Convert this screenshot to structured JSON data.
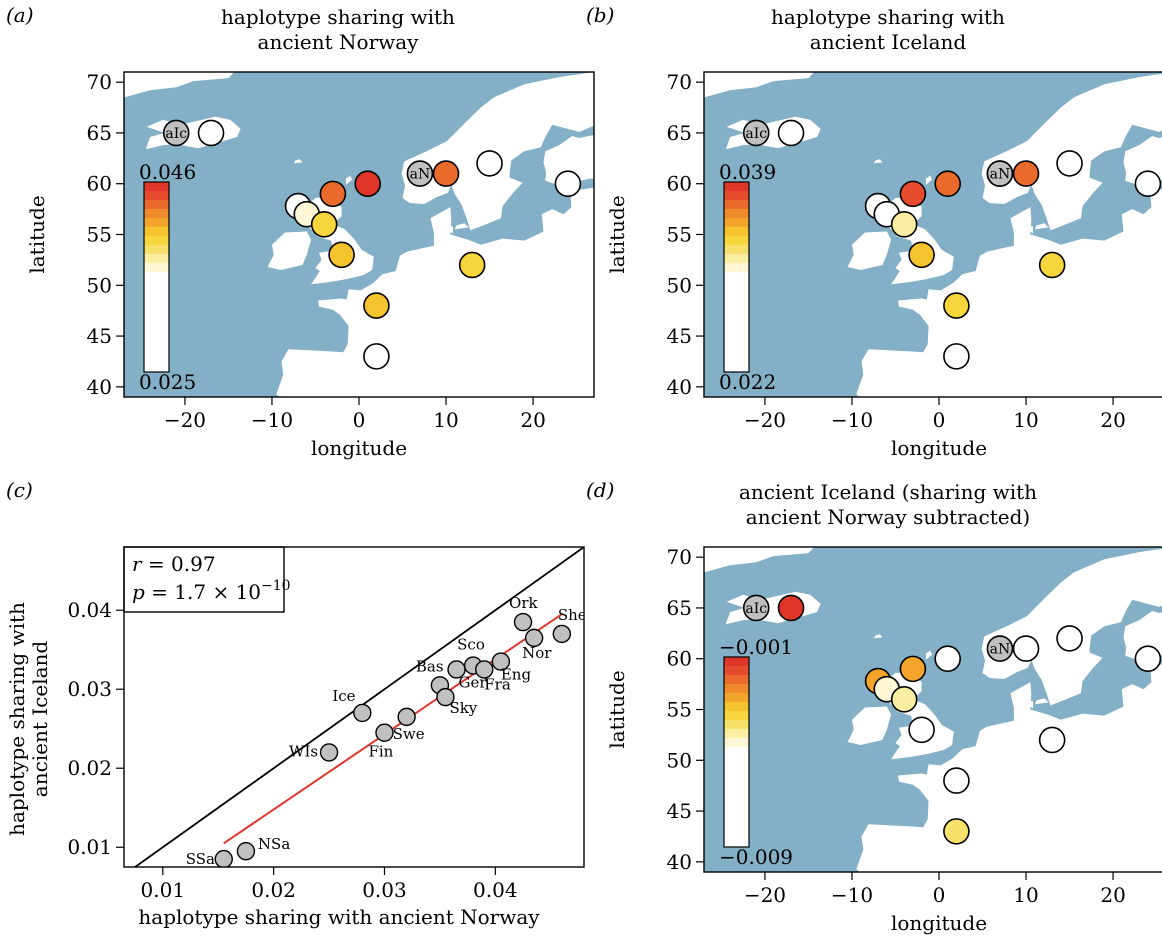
{
  "chart_data": [
    {
      "panel": "(a)",
      "type": "map-scatter",
      "title": [
        "haplotype sharing with",
        "ancient Norway"
      ],
      "xlabel": "longitude",
      "ylabel": "latitude",
      "xlim": [
        -27,
        27
      ],
      "ylim": [
        39,
        71
      ],
      "xticks": [
        -20,
        -10,
        0,
        10,
        20
      ],
      "yticks": [
        40,
        45,
        50,
        55,
        60,
        65,
        70
      ],
      "legend": {
        "max_label": "0.046",
        "min_label": "0.025",
        "min": 0.025,
        "max": 0.046
      },
      "reference_points": [
        {
          "label": "aIc",
          "lon": -21,
          "lat": 65
        },
        {
          "label": "aN",
          "lon": 7,
          "lat": 61
        }
      ],
      "points": [
        {
          "lon": -17,
          "lat": 65,
          "value": 0.025
        },
        {
          "lon": 10,
          "lat": 61,
          "value": 0.042
        },
        {
          "lon": 1,
          "lat": 60,
          "value": 0.045
        },
        {
          "lon": -3,
          "lat": 59,
          "value": 0.041
        },
        {
          "lon": -7,
          "lat": 57.8,
          "value": 0.025
        },
        {
          "lon": -6,
          "lat": 57,
          "value": 0.027
        },
        {
          "lon": -4,
          "lat": 56,
          "value": 0.033
        },
        {
          "lon": -2,
          "lat": 53,
          "value": 0.035
        },
        {
          "lon": 2,
          "lat": 48,
          "value": 0.035
        },
        {
          "lon": 13,
          "lat": 52,
          "value": 0.034
        },
        {
          "lon": 2,
          "lat": 43,
          "value": 0.025
        },
        {
          "lon": 15,
          "lat": 62,
          "value": 0.025
        },
        {
          "lon": 24,
          "lat": 60,
          "value": 0.025
        }
      ]
    },
    {
      "panel": "(b)",
      "type": "map-scatter",
      "title": [
        "haplotype sharing with",
        "ancient Iceland"
      ],
      "xlabel": "longitude",
      "ylabel": "latitude",
      "xlim": [
        -27,
        27
      ],
      "ylim": [
        39,
        71
      ],
      "xticks": [
        -20,
        -10,
        0,
        10,
        20
      ],
      "yticks": [
        40,
        45,
        50,
        55,
        60,
        65,
        70
      ],
      "legend": {
        "max_label": "0.039",
        "min_label": "0.022",
        "min": 0.022,
        "max": 0.039
      },
      "reference_points": [
        {
          "label": "aIc",
          "lon": -21,
          "lat": 65
        },
        {
          "label": "aN",
          "lon": 7,
          "lat": 61
        }
      ],
      "points": [
        {
          "lon": -17,
          "lat": 65,
          "value": 0.022
        },
        {
          "lon": 7,
          "lat": 61,
          "value": 0.037
        },
        {
          "lon": 10,
          "lat": 61,
          "value": 0.036
        },
        {
          "lon": 1,
          "lat": 60,
          "value": 0.035
        },
        {
          "lon": -3,
          "lat": 59,
          "value": 0.038
        },
        {
          "lon": -7,
          "lat": 57.8,
          "value": 0.022
        },
        {
          "lon": -6,
          "lat": 57,
          "value": 0.022
        },
        {
          "lon": -4,
          "lat": 56,
          "value": 0.026
        },
        {
          "lon": -2,
          "lat": 53,
          "value": 0.031
        },
        {
          "lon": 2,
          "lat": 48,
          "value": 0.029
        },
        {
          "lon": 13,
          "lat": 52,
          "value": 0.028
        },
        {
          "lon": 2,
          "lat": 43,
          "value": 0.022
        },
        {
          "lon": 15,
          "lat": 62,
          "value": 0.022
        },
        {
          "lon": 24,
          "lat": 60,
          "value": 0.022
        }
      ]
    },
    {
      "panel": "(c)",
      "type": "scatter",
      "xlabel": "haplotype sharing with ancient Norway",
      "ylabel": [
        "haplotype sharing with",
        "ancient Iceland"
      ],
      "xlim": [
        0.0065,
        0.048
      ],
      "ylim": [
        0.0075,
        0.048
      ],
      "xticks": [
        0.01,
        0.02,
        0.03,
        0.04
      ],
      "yticks": [
        0.01,
        0.02,
        0.03,
        0.04
      ],
      "xtick_labels": [
        "0.01",
        "0.02",
        "0.03",
        "0.04"
      ],
      "ytick_labels": [
        "0.01",
        "0.02",
        "0.03",
        "0.04"
      ],
      "stats": {
        "r_label": "r",
        "r_value": "= 0.97",
        "p_label": "p",
        "p_value": "= 1.7 × 10",
        "p_exp": "−10"
      },
      "identity_line": true,
      "fit_line": [
        [
          0.0155,
          0.0105
        ],
        [
          0.046,
          0.0395
        ]
      ],
      "points": [
        {
          "label": "SSa",
          "x": 0.0155,
          "y": 0.0085
        },
        {
          "label": "NSa",
          "x": 0.0175,
          "y": 0.0095
        },
        {
          "label": "WIs",
          "x": 0.025,
          "y": 0.022
        },
        {
          "label": "Ice",
          "x": 0.028,
          "y": 0.027
        },
        {
          "label": "Fin",
          "x": 0.03,
          "y": 0.0245
        },
        {
          "label": "Swe",
          "x": 0.032,
          "y": 0.0265
        },
        {
          "label": "Bas",
          "x": 0.035,
          "y": 0.0305
        },
        {
          "label": "Sky",
          "x": 0.0355,
          "y": 0.029
        },
        {
          "label": "Ger",
          "x": 0.0365,
          "y": 0.0325
        },
        {
          "label": "Sco",
          "x": 0.038,
          "y": 0.033
        },
        {
          "label": "Fra",
          "x": 0.039,
          "y": 0.0325
        },
        {
          "label": "Eng",
          "x": 0.0405,
          "y": 0.0335
        },
        {
          "label": "Nor",
          "x": 0.0435,
          "y": 0.0365
        },
        {
          "label": "Ork",
          "x": 0.0425,
          "y": 0.0385
        },
        {
          "label": "She",
          "x": 0.046,
          "y": 0.037
        }
      ]
    },
    {
      "panel": "(d)",
      "type": "map-scatter",
      "title": [
        "ancient Iceland (sharing with",
        "ancient Norway subtracted)"
      ],
      "xlabel": "longitude",
      "ylabel": "latitude",
      "xlim": [
        -27,
        27
      ],
      "ylim": [
        39,
        71
      ],
      "xticks": [
        -20,
        -10,
        0,
        10,
        20
      ],
      "yticks": [
        40,
        45,
        50,
        55,
        60,
        65,
        70
      ],
      "legend": {
        "max_label": "−0.001",
        "min_label": "−0.009",
        "min": -0.009,
        "max": -0.001
      },
      "reference_points": [
        {
          "label": "aIc",
          "lon": -21,
          "lat": 65
        },
        {
          "label": "aN",
          "lon": 7,
          "lat": 61
        }
      ],
      "points": [
        {
          "lon": -17,
          "lat": 65,
          "value": -0.001
        },
        {
          "lon": 10,
          "lat": 61,
          "value": -0.009
        },
        {
          "lon": 1,
          "lat": 60,
          "value": -0.009
        },
        {
          "lon": -3,
          "lat": 59,
          "value": -0.004
        },
        {
          "lon": -7,
          "lat": 57.8,
          "value": -0.004
        },
        {
          "lon": -6,
          "lat": 57,
          "value": -0.008
        },
        {
          "lon": -4,
          "lat": 56,
          "value": -0.0075
        },
        {
          "lon": -2,
          "lat": 53,
          "value": -0.009
        },
        {
          "lon": 2,
          "lat": 48,
          "value": -0.009
        },
        {
          "lon": 13,
          "lat": 52,
          "value": -0.009
        },
        {
          "lon": 2,
          "lat": 43,
          "value": -0.0065
        },
        {
          "lon": 15,
          "lat": 62,
          "value": -0.009
        },
        {
          "lon": 24,
          "lat": 60,
          "value": -0.009
        }
      ]
    }
  ],
  "colors": {
    "sea": "#83b0c6",
    "land": "#ffffff",
    "reference_point": "#c0c0c0",
    "scatter_point": "#c0c0c0",
    "fit_line": "#e0362a",
    "scale": [
      "#ffffff",
      "#fdf7d6",
      "#fbeea0",
      "#f8e16a",
      "#f6d63c",
      "#f5c32c",
      "#f3a52b",
      "#ef8a2c",
      "#ea6a2c",
      "#e54b2c",
      "#e0362a"
    ]
  }
}
